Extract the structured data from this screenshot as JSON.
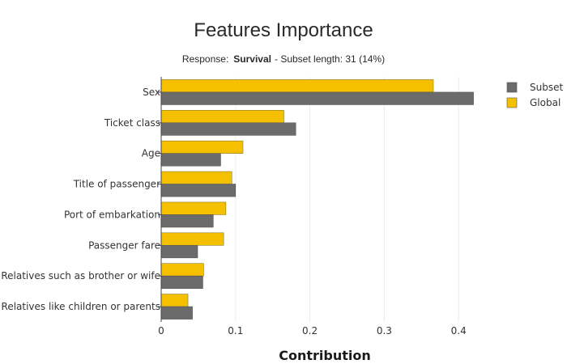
{
  "chart_data": {
    "type": "bar",
    "orientation": "horizontal",
    "title": "Features Importance",
    "subtitle": {
      "prefix": "Response:",
      "response": "Survival",
      "suffix": "- Subset length: 31 (14%)"
    },
    "xlabel": "Contribution",
    "ylabel": "",
    "xlim": [
      0,
      0.43
    ],
    "xticks": [
      0,
      0.1,
      0.2,
      0.3,
      0.4
    ],
    "xtick_labels": [
      "0",
      "0.1",
      "0.2",
      "0.3",
      "0.4"
    ],
    "grid": true,
    "legend_position": "top-right",
    "categories": [
      "Sex",
      "Ticket class",
      "Age",
      "Title of passenger",
      "Port of embarkation",
      "Passenger fare",
      "Relatives such as brother or wife",
      "Relatives like children or parents"
    ],
    "series": [
      {
        "name": "Subset",
        "color": "#6b6b6b",
        "values": [
          0.42,
          0.181,
          0.08,
          0.1,
          0.07,
          0.049,
          0.056,
          0.042
        ]
      },
      {
        "name": "Global",
        "color": "#f5c000",
        "values": [
          0.366,
          0.165,
          0.11,
          0.095,
          0.087,
          0.084,
          0.057,
          0.036
        ]
      }
    ]
  }
}
